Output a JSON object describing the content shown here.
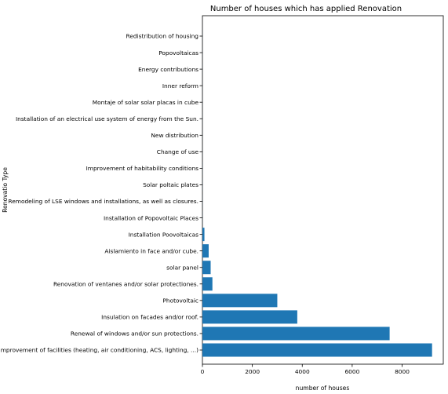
{
  "chart_data": {
    "type": "bar",
    "orientation": "horizontal",
    "title": "Number of houses which has applied  Renovation",
    "xlabel": "number of houses",
    "ylabel": "Renovatio Type",
    "xlim": [
      0,
      9650
    ],
    "xticks": [
      0,
      2000,
      4000,
      6000,
      8000
    ],
    "xtick_labels": [
      "0",
      "2000",
      "4000",
      "6000",
      "8000"
    ],
    "grid": false,
    "bar_color": "#1f77b4",
    "categories": [
      "Improvement of facilities (heating, air conditioning, ACS, lighting, ...)",
      "Renewal of windows and/or sun protections.",
      "Insulation on facades and/or roof.",
      "Photovoltaic",
      "Renovation of ventanes and/or solar protectiones.",
      "solar panel",
      "Aislamiento in face and/or cube.",
      "Installation Poovoltaicas",
      "Installation of Popovoltaic Places",
      "Remodeling of LSE windows and installations, as well as closures.",
      "Solar poltaic plates",
      "Improvement of habitability conditions",
      "Change of use",
      "New distribution",
      "Installation of an electrical use system of energy from the Sun.",
      "Montaje of solar solar placas in cube",
      "Inner reform",
      "Energy contributions",
      "Popovoltaicas",
      "Redistribution of housing"
    ],
    "values": [
      9200,
      7500,
      3800,
      3000,
      400,
      330,
      250,
      80,
      2,
      2,
      2,
      2,
      1,
      1,
      1,
      1,
      1,
      1,
      1,
      1
    ]
  }
}
